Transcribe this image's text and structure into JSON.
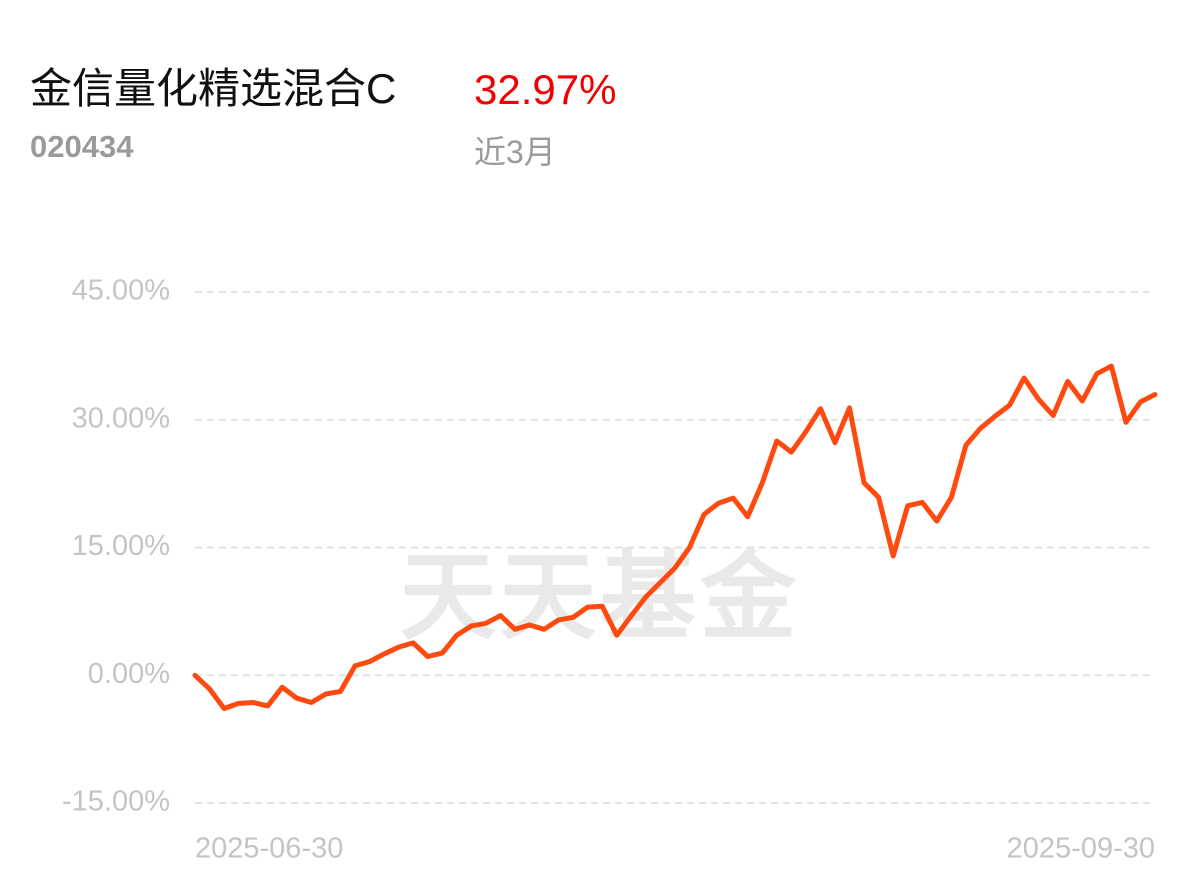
{
  "chart_data": {
    "type": "line",
    "title": "金信量化精选混合C",
    "subtitle": "020434",
    "return_label": "32.97%",
    "period": "近3月",
    "watermark": "天天基金",
    "color": "#ff4a0f",
    "return_color": "#f00000",
    "grid": true,
    "x": [
      "2025-06-30",
      null,
      null,
      null,
      null,
      null,
      null,
      null,
      null,
      null,
      null,
      null,
      null,
      null,
      null,
      null,
      null,
      null,
      null,
      null,
      null,
      null,
      null,
      null,
      null,
      null,
      null,
      null,
      null,
      null,
      null,
      null,
      null,
      null,
      null,
      null,
      null,
      null,
      null,
      null,
      null,
      null,
      null,
      null,
      null,
      null,
      null,
      null,
      null,
      null,
      null,
      null,
      null,
      null,
      null,
      null,
      null,
      null,
      null,
      null,
      null,
      null,
      null,
      null,
      null,
      null,
      "2025-09-30"
    ],
    "values": [
      0,
      -1.6,
      -3.9,
      -3.3,
      -3.2,
      -3.6,
      -1.4,
      -2.7,
      -3.2,
      -2.2,
      -1.9,
      1.1,
      1.6,
      2.5,
      3.3,
      3.8,
      2.2,
      2.6,
      4.7,
      5.8,
      6.1,
      7.0,
      5.4,
      5.9,
      5.4,
      6.5,
      6.8,
      8.0,
      8.1,
      4.7,
      7.0,
      9.2,
      10.9,
      12.6,
      15.0,
      18.9,
      20.2,
      20.8,
      18.6,
      22.6,
      27.5,
      26.2,
      28.6,
      31.3,
      27.3,
      31.4,
      22.6,
      20.9,
      14.0,
      19.9,
      20.3,
      18.1,
      20.9,
      27.0,
      29.0,
      30.4,
      31.7,
      34.9,
      32.4,
      30.5,
      34.5,
      32.2,
      35.4,
      36.3,
      29.7,
      32.1,
      32.97
    ],
    "ylim": [
      -15,
      45
    ],
    "yticks": [
      {
        "value": 45,
        "label": "45.00%"
      },
      {
        "value": 30,
        "label": "30.00%"
      },
      {
        "value": 15,
        "label": "15.00%"
      },
      {
        "value": 0,
        "label": "0.00%"
      },
      {
        "value": -15,
        "label": "-15.00%"
      }
    ]
  }
}
